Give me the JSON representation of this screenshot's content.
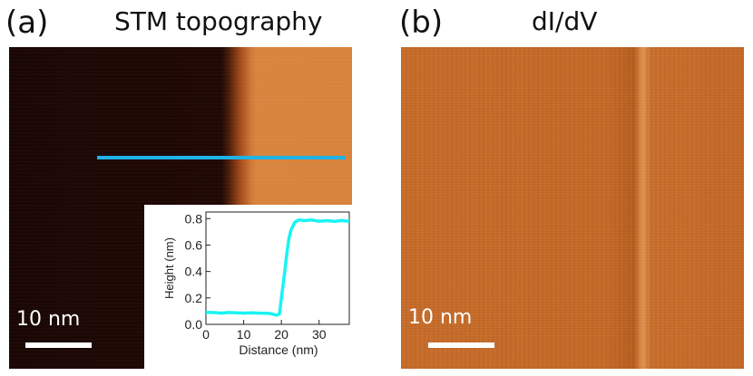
{
  "panel_a": {
    "letter": "(a)",
    "title": "STM topography",
    "scale_label": "10 nm"
  },
  "panel_b": {
    "letter": "(b)",
    "title": "dI/dV",
    "scale_label": "10 nm"
  },
  "colors": {
    "line_cut": "#1fb3e8",
    "profile": "#19f3f3"
  },
  "chart_data": {
    "type": "line",
    "title": "",
    "xlabel": "Distance (nm)",
    "ylabel": "Height (nm)",
    "xlim": [
      0,
      38
    ],
    "ylim": [
      0,
      0.85
    ],
    "xticks": [
      0,
      10,
      20,
      30
    ],
    "yticks": [
      0.0,
      0.2,
      0.4,
      0.6,
      0.8
    ],
    "ytick_labels": [
      "0.0",
      "0.2",
      "0.4",
      "0.6",
      "0.8"
    ],
    "series": [
      {
        "name": "height profile",
        "x": [
          0,
          2,
          4,
          6,
          8,
          10,
          12,
          14,
          16,
          17,
          18,
          18.8,
          19.5,
          20,
          20.8,
          21.5,
          22,
          22.5,
          23,
          23.5,
          24.2,
          25,
          26,
          28,
          30,
          32,
          34,
          36,
          38
        ],
        "y": [
          0.09,
          0.09,
          0.085,
          0.09,
          0.088,
          0.085,
          0.087,
          0.085,
          0.084,
          0.082,
          0.075,
          0.07,
          0.08,
          0.2,
          0.38,
          0.55,
          0.65,
          0.71,
          0.74,
          0.77,
          0.785,
          0.79,
          0.785,
          0.79,
          0.78,
          0.785,
          0.78,
          0.785,
          0.78
        ]
      }
    ]
  }
}
